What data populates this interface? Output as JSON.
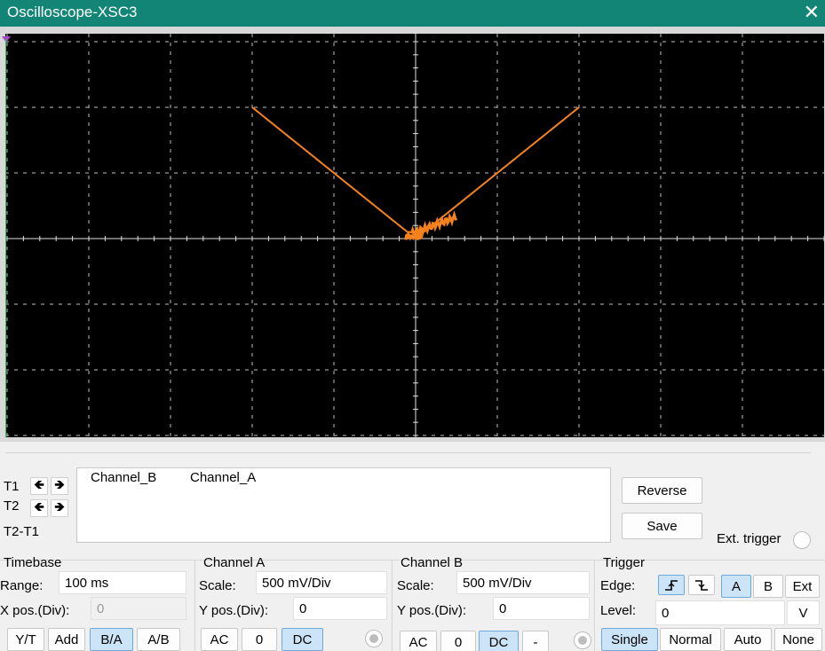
{
  "window": {
    "title": "Oscilloscope-XSC3"
  },
  "cursors": {
    "t1_label": "T1",
    "t2_label": "T2",
    "diff_label": "T2-T1"
  },
  "readout": {
    "columns": [
      "Channel_B",
      "Channel_A"
    ]
  },
  "buttons": {
    "reverse": "Reverse",
    "save": "Save"
  },
  "ext_trigger": {
    "label": "Ext. trigger"
  },
  "timebase": {
    "title": "Timebase",
    "range_label": "Range:",
    "range_value": "100 ms",
    "xpos_label": "X pos.(Div):",
    "xpos_value": "0",
    "modes": [
      "Y/T",
      "Add",
      "B/A",
      "A/B"
    ],
    "active_mode": "B/A"
  },
  "channel_a": {
    "title": "Channel A",
    "scale_label": "Scale:",
    "scale_value": "500 mV/Div",
    "ypos_label": "Y pos.(Div):",
    "ypos_value": "0",
    "coupling": [
      "AC",
      "0",
      "DC"
    ],
    "active_coupling": "DC"
  },
  "channel_b": {
    "title": "Channel B",
    "scale_label": "Scale:",
    "scale_value": "500 mV/Div",
    "ypos_label": "Y pos.(Div):",
    "ypos_value": "0",
    "coupling": [
      "AC",
      "0",
      "DC",
      "-"
    ],
    "active_coupling": "DC"
  },
  "trigger": {
    "title": "Trigger",
    "edge_label": "Edge:",
    "sources": [
      "A",
      "B",
      "Ext"
    ],
    "active_source": "A",
    "level_label": "Level:",
    "level_value": "0",
    "level_unit": "V",
    "modes": [
      "Single",
      "Normal",
      "Auto",
      "None"
    ],
    "active_mode": "Single"
  },
  "colors": {
    "trace": "#f5821f",
    "titlebar": "#138576",
    "screen": "#000000",
    "grid": "#bfbfbf",
    "active_button": "#cce4f7"
  },
  "icons": {
    "close": "close-icon",
    "rising_edge": "rising-edge-icon",
    "falling_edge": "falling-edge-icon",
    "arrow_left": "arrow-left-icon",
    "arrow_right": "arrow-right-icon"
  }
}
